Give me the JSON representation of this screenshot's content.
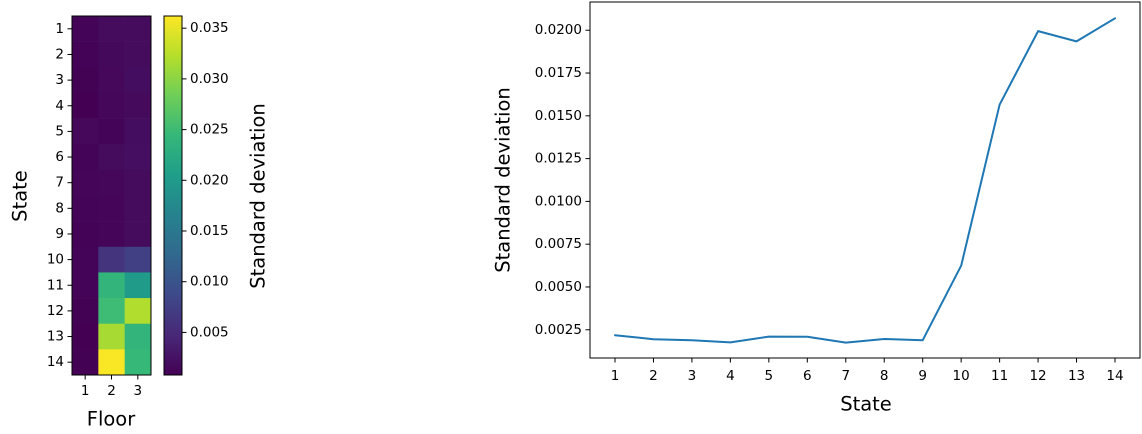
{
  "chart_data": [
    {
      "type": "heatmap",
      "xlabel": "Floor",
      "ylabel": "State",
      "x_categories": [
        "1",
        "2",
        "3"
      ],
      "y_categories": [
        "1",
        "2",
        "3",
        "4",
        "5",
        "6",
        "7",
        "8",
        "9",
        "10",
        "11",
        "12",
        "13",
        "14"
      ],
      "values": [
        [
          0.0012,
          0.0018,
          0.0019
        ],
        [
          0.001,
          0.0016,
          0.0018
        ],
        [
          0.0009,
          0.0015,
          0.002
        ],
        [
          0.0008,
          0.0014,
          0.0017
        ],
        [
          0.0015,
          0.0012,
          0.002
        ],
        [
          0.0011,
          0.0018,
          0.0021
        ],
        [
          0.0013,
          0.0014,
          0.0018
        ],
        [
          0.0012,
          0.0013,
          0.0019
        ],
        [
          0.001,
          0.0013,
          0.0018
        ],
        [
          0.0011,
          0.0062,
          0.0076
        ],
        [
          0.0012,
          0.024,
          0.02
        ],
        [
          0.0009,
          0.025,
          0.032
        ],
        [
          0.0008,
          0.0315,
          0.024
        ],
        [
          0.0009,
          0.036,
          0.0245
        ]
      ],
      "colorbar": {
        "label": "Standard deviation",
        "range": [
          0.0008,
          0.0362
        ],
        "ticks": [
          0.005,
          0.01,
          0.015,
          0.02,
          0.025,
          0.03,
          0.035
        ],
        "tick_labels": [
          "0.005",
          "0.010",
          "0.015",
          "0.020",
          "0.025",
          "0.030",
          "0.035"
        ],
        "colormap": "viridis"
      }
    },
    {
      "type": "line",
      "xlabel": "State",
      "ylabel": "Standard deviation",
      "x": [
        1,
        2,
        3,
        4,
        5,
        6,
        7,
        8,
        9,
        10,
        11,
        12,
        13,
        14
      ],
      "y": [
        0.00218,
        0.00195,
        0.00189,
        0.00176,
        0.0021,
        0.00209,
        0.00175,
        0.00196,
        0.00189,
        0.00625,
        0.01565,
        0.01995,
        0.01935,
        0.0207
      ],
      "xlim": [
        0.35,
        14.65
      ],
      "ylim": [
        0.00085,
        0.02165
      ],
      "x_ticks": [
        1,
        2,
        3,
        4,
        5,
        6,
        7,
        8,
        9,
        10,
        11,
        12,
        13,
        14
      ],
      "x_tick_labels": [
        "1",
        "2",
        "3",
        "4",
        "5",
        "6",
        "7",
        "8",
        "9",
        "10",
        "11",
        "12",
        "13",
        "14"
      ],
      "y_ticks": [
        0.0025,
        0.005,
        0.0075,
        0.01,
        0.0125,
        0.015,
        0.0175,
        0.02
      ],
      "y_tick_labels": [
        "0.0025",
        "0.0050",
        "0.0075",
        "0.0100",
        "0.0125",
        "0.0150",
        "0.0175",
        "0.0200"
      ],
      "line_color": "#1f77b4",
      "grid": false
    }
  ]
}
